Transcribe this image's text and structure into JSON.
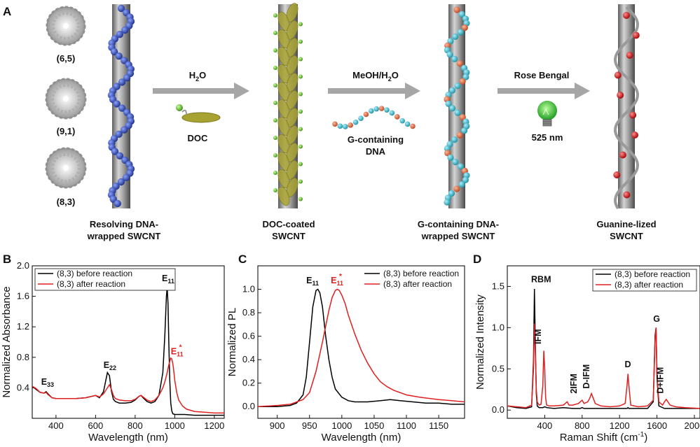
{
  "panel_a": {
    "letter": "A",
    "chiralities": [
      "(6,5)",
      "(9,1)",
      "(8,3)"
    ],
    "steps": [
      {
        "reagent": "H",
        "reagent_sub": "2",
        "reagent_tail": "O",
        "agent": "DOC"
      },
      {
        "reagent": "MeOH/H",
        "reagent_sub": "2",
        "reagent_tail": "O",
        "agent_line1": "G-containing",
        "agent_line2": "DNA"
      },
      {
        "reagent": "Rose Bengal",
        "reagent_sub": "",
        "reagent_tail": "",
        "agent": "525 nm"
      }
    ],
    "captions": [
      {
        "line1": "Resolving DNA-",
        "line2": "wrapped SWCNT"
      },
      {
        "line1": "DOC-coated",
        "line2": "SWCNT"
      },
      {
        "line1": "G-containing DNA-",
        "line2": "wrapped SWCNT"
      },
      {
        "line1": "Guanine-lized",
        "line2": "SWCNT"
      }
    ],
    "colors": {
      "dna_blue": "#2c47a8",
      "doc_olive": "#a8a232",
      "doc_green": "#5fb832",
      "g_orange": "#e0714a",
      "g_cyan": "#3ab7c9",
      "guanine_red": "#d02020",
      "tube_gray": "#8c8c8c",
      "arrow_gray": "#a6a6a6",
      "bulb_green": "#34c23a"
    }
  },
  "chart_data": [
    {
      "panel": "B",
      "type": "line",
      "xlabel": "Wavelength (nm)",
      "ylabel": "Normalized Absorbance",
      "xlim": [
        280,
        1250
      ],
      "ylim": [
        0.0,
        2.0
      ],
      "xticks": [
        "400",
        "600",
        "800",
        "1000",
        "1200"
      ],
      "yticks": [
        "0.4",
        "0.8",
        "1.2",
        "1.6",
        "2.0"
      ],
      "legend": "top-left",
      "series": [
        {
          "name": "(8,3) before reaction",
          "color": "#000000",
          "x": [
            280,
            300,
            320,
            340,
            350,
            360,
            380,
            400,
            450,
            500,
            550,
            600,
            620,
            640,
            660,
            670,
            680,
            690,
            700,
            720,
            750,
            780,
            800,
            820,
            830,
            840,
            860,
            880,
            900,
            920,
            940,
            950,
            958,
            962,
            966,
            970,
            975,
            980,
            985,
            990,
            1000,
            1020,
            1050,
            1100,
            1150,
            1200,
            1250
          ],
          "y": [
            0.42,
            0.38,
            0.34,
            0.33,
            0.35,
            0.32,
            0.27,
            0.26,
            0.26,
            0.26,
            0.27,
            0.3,
            0.27,
            0.35,
            0.6,
            0.56,
            0.36,
            0.25,
            0.22,
            0.2,
            0.2,
            0.21,
            0.24,
            0.29,
            0.3,
            0.27,
            0.22,
            0.2,
            0.22,
            0.3,
            0.6,
            1.1,
            1.6,
            1.72,
            1.5,
            1.0,
            0.5,
            0.2,
            0.1,
            0.06,
            0.05,
            0.05,
            0.05,
            0.04,
            0.04,
            0.04,
            0.04
          ]
        },
        {
          "name": "(8,3) after reaction",
          "color": "#e02020",
          "x": [
            280,
            300,
            320,
            340,
            350,
            360,
            380,
            400,
            450,
            500,
            550,
            600,
            620,
            640,
            660,
            670,
            680,
            690,
            700,
            720,
            750,
            780,
            800,
            820,
            830,
            840,
            860,
            880,
            900,
            920,
            940,
            950,
            960,
            970,
            980,
            985,
            990,
            995,
            1000,
            1010,
            1020,
            1040,
            1060,
            1100,
            1150,
            1200,
            1250
          ],
          "y": [
            0.42,
            0.39,
            0.34,
            0.33,
            0.34,
            0.31,
            0.27,
            0.26,
            0.26,
            0.26,
            0.27,
            0.3,
            0.28,
            0.32,
            0.4,
            0.44,
            0.38,
            0.3,
            0.26,
            0.24,
            0.23,
            0.23,
            0.25,
            0.29,
            0.3,
            0.28,
            0.24,
            0.22,
            0.24,
            0.3,
            0.4,
            0.48,
            0.58,
            0.7,
            0.79,
            0.78,
            0.72,
            0.62,
            0.5,
            0.34,
            0.24,
            0.16,
            0.12,
            0.09,
            0.08,
            0.07,
            0.07
          ]
        }
      ],
      "annotations": [
        "E33",
        "E22",
        "E11",
        "E11*"
      ]
    },
    {
      "panel": "C",
      "type": "line",
      "xlabel": "Wavelength (nm)",
      "ylabel": "Normalized PL",
      "xlim": [
        870,
        1190
      ],
      "ylim": [
        -0.1,
        1.2
      ],
      "xticks": [
        "900",
        "950",
        "1000",
        "1050",
        "1100",
        "1150"
      ],
      "yticks": [
        "0.0",
        "0.2",
        "0.4",
        "0.6",
        "0.8",
        "1.0"
      ],
      "legend": "top-right",
      "series": [
        {
          "name": "(8,3) before reaction",
          "color": "#000000",
          "x": [
            870,
            900,
            920,
            930,
            940,
            945,
            950,
            955,
            960,
            963,
            966,
            970,
            975,
            980,
            985,
            990,
            1000,
            1010,
            1020,
            1040,
            1060,
            1075,
            1090,
            1110,
            1130,
            1150,
            1170,
            1190
          ],
          "y": [
            0.0,
            0.0,
            0.01,
            0.03,
            0.1,
            0.25,
            0.55,
            0.85,
            0.99,
            1.0,
            0.97,
            0.85,
            0.6,
            0.4,
            0.25,
            0.15,
            0.08,
            0.05,
            0.04,
            0.04,
            0.05,
            0.06,
            0.05,
            0.04,
            0.03,
            0.03,
            0.02,
            0.02
          ]
        },
        {
          "name": "(8,3) after reaction",
          "color": "#e02020",
          "x": [
            870,
            900,
            920,
            940,
            950,
            960,
            970,
            980,
            985,
            990,
            993,
            996,
            1000,
            1005,
            1010,
            1020,
            1030,
            1040,
            1050,
            1060,
            1070,
            1080,
            1100,
            1120,
            1150,
            1170,
            1190
          ],
          "y": [
            0.0,
            0.01,
            0.02,
            0.06,
            0.12,
            0.3,
            0.55,
            0.82,
            0.93,
            0.99,
            1.0,
            0.99,
            0.95,
            0.88,
            0.78,
            0.62,
            0.48,
            0.37,
            0.28,
            0.21,
            0.17,
            0.14,
            0.1,
            0.08,
            0.06,
            0.05,
            0.04
          ]
        }
      ],
      "annotations": [
        "E11",
        "E11*"
      ]
    },
    {
      "panel": "D",
      "type": "line",
      "xlabel": "Raman Shift (cm",
      "xlabel_sup": "-1",
      "xlabel_tail": ")",
      "ylabel": "Normalized Intensity",
      "xlim": [
        0,
        2060
      ],
      "ylim": [
        -0.1,
        1.75
      ],
      "xticks": [
        "400",
        "800",
        "1200",
        "1600",
        "2000"
      ],
      "yticks": [
        "0.0",
        "0.5",
        "1.0",
        "1.5"
      ],
      "legend": "top-right",
      "series": [
        {
          "name": "(8,3) before reaction",
          "color": "#000000",
          "x": [
            0,
            100,
            200,
            260,
            280,
            290,
            300,
            310,
            320,
            340,
            380,
            400,
            420,
            500,
            600,
            700,
            780,
            800,
            820,
            900,
            1000,
            1100,
            1200,
            1280,
            1290,
            1300,
            1400,
            1500,
            1560,
            1580,
            1590,
            1600,
            1620,
            1680,
            1700,
            1800,
            1900,
            2060
          ],
          "y": [
            0.05,
            0.03,
            0.02,
            0.04,
            0.6,
            1.47,
            0.8,
            0.2,
            0.05,
            0.03,
            0.03,
            0.04,
            0.03,
            0.02,
            0.03,
            0.02,
            0.02,
            0.03,
            0.02,
            0.02,
            0.02,
            0.02,
            0.02,
            0.02,
            0.03,
            0.02,
            0.02,
            0.02,
            0.1,
            0.9,
            1.0,
            0.4,
            0.05,
            0.02,
            0.02,
            0.02,
            0.02,
            0.02
          ]
        },
        {
          "name": "(8,3) after reaction",
          "color": "#e02020",
          "x": [
            0,
            100,
            200,
            260,
            280,
            290,
            300,
            310,
            320,
            340,
            360,
            380,
            390,
            400,
            410,
            420,
            450,
            500,
            600,
            640,
            660,
            700,
            760,
            780,
            800,
            820,
            860,
            880,
            900,
            920,
            940,
            1000,
            1100,
            1200,
            1260,
            1280,
            1290,
            1300,
            1320,
            1400,
            1500,
            1560,
            1580,
            1590,
            1600,
            1620,
            1660,
            1680,
            1700,
            1740,
            1800,
            1900,
            2060
          ],
          "y": [
            0.05,
            0.04,
            0.03,
            0.06,
            0.5,
            1.05,
            0.7,
            0.25,
            0.1,
            0.06,
            0.07,
            0.3,
            0.72,
            0.5,
            0.15,
            0.06,
            0.05,
            0.05,
            0.06,
            0.1,
            0.06,
            0.06,
            0.08,
            0.1,
            0.12,
            0.08,
            0.1,
            0.14,
            0.2,
            0.14,
            0.08,
            0.05,
            0.04,
            0.05,
            0.08,
            0.3,
            0.44,
            0.3,
            0.06,
            0.04,
            0.05,
            0.12,
            0.85,
            1.0,
            0.45,
            0.1,
            0.06,
            0.1,
            0.13,
            0.06,
            0.04,
            0.03,
            0.02
          ]
        }
      ],
      "annotations": [
        "RBM",
        "IFM",
        "2IFM",
        "D-IFM",
        "D",
        "G",
        "D+IFM"
      ]
    }
  ]
}
